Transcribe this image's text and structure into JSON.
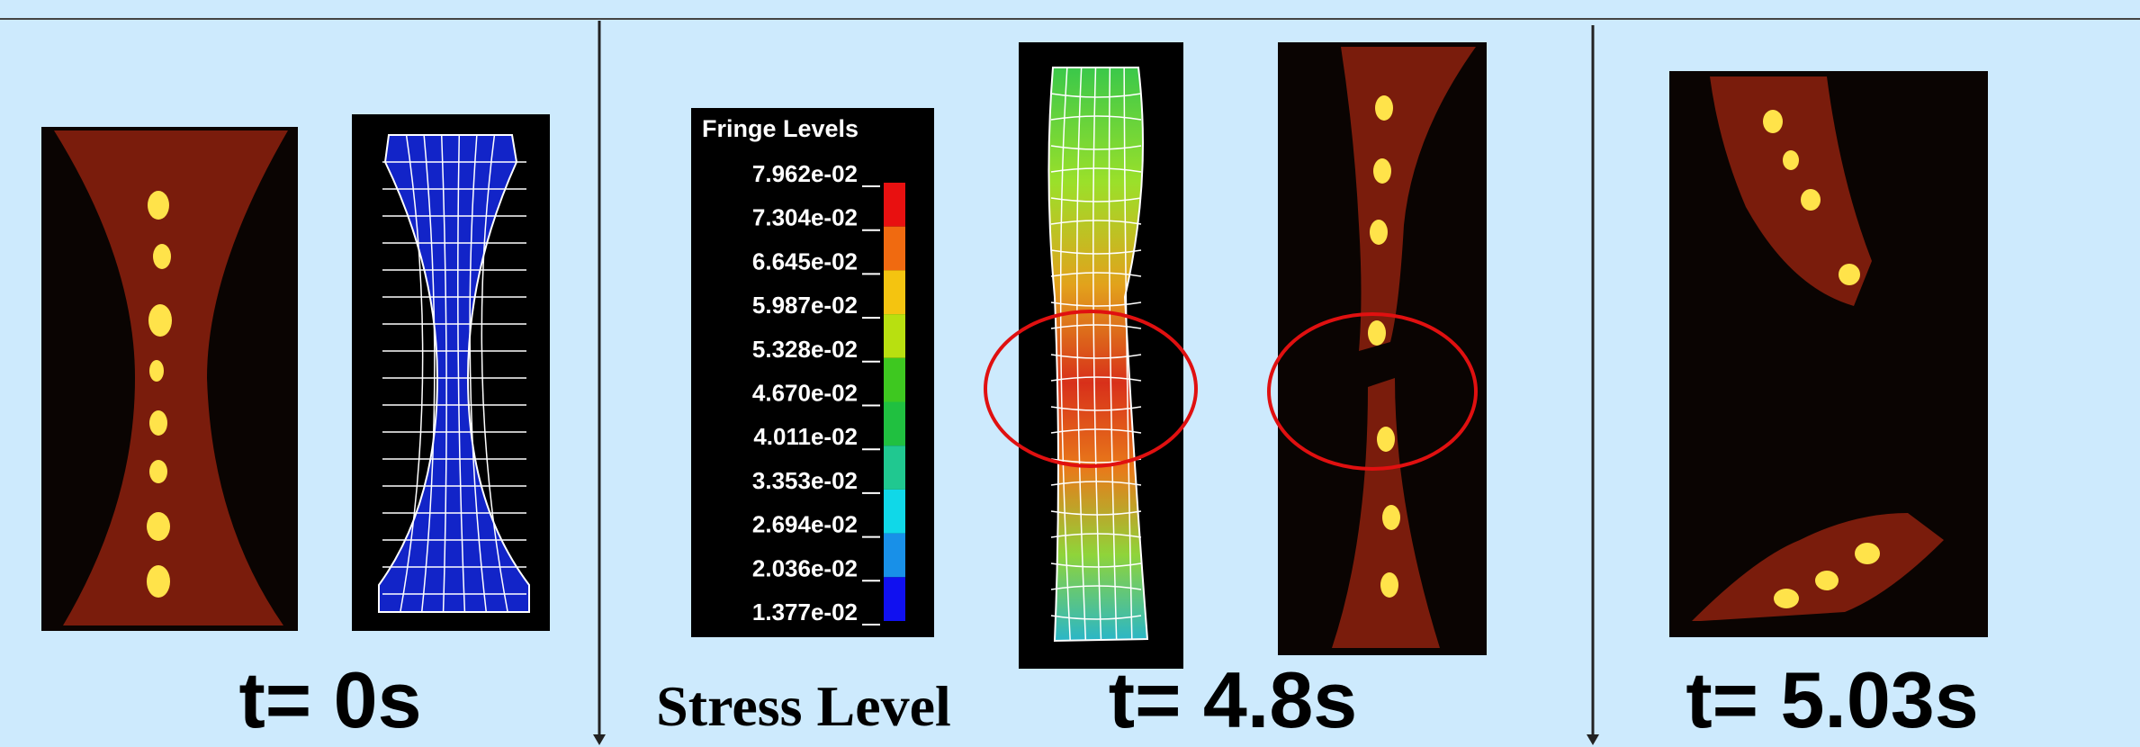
{
  "fringe": {
    "title": "Fringe Levels",
    "levels": [
      "7.962e-02",
      "7.304e-02",
      "6.645e-02",
      "5.987e-02",
      "5.328e-02",
      "4.670e-02",
      "4.011e-02",
      "3.353e-02",
      "2.694e-02",
      "2.036e-02",
      "1.377e-02"
    ]
  },
  "labels": {
    "t0": "t= 0s",
    "stress": "Stress Level",
    "t48": "t= 4.8s",
    "t503": "t= 5.03s"
  }
}
